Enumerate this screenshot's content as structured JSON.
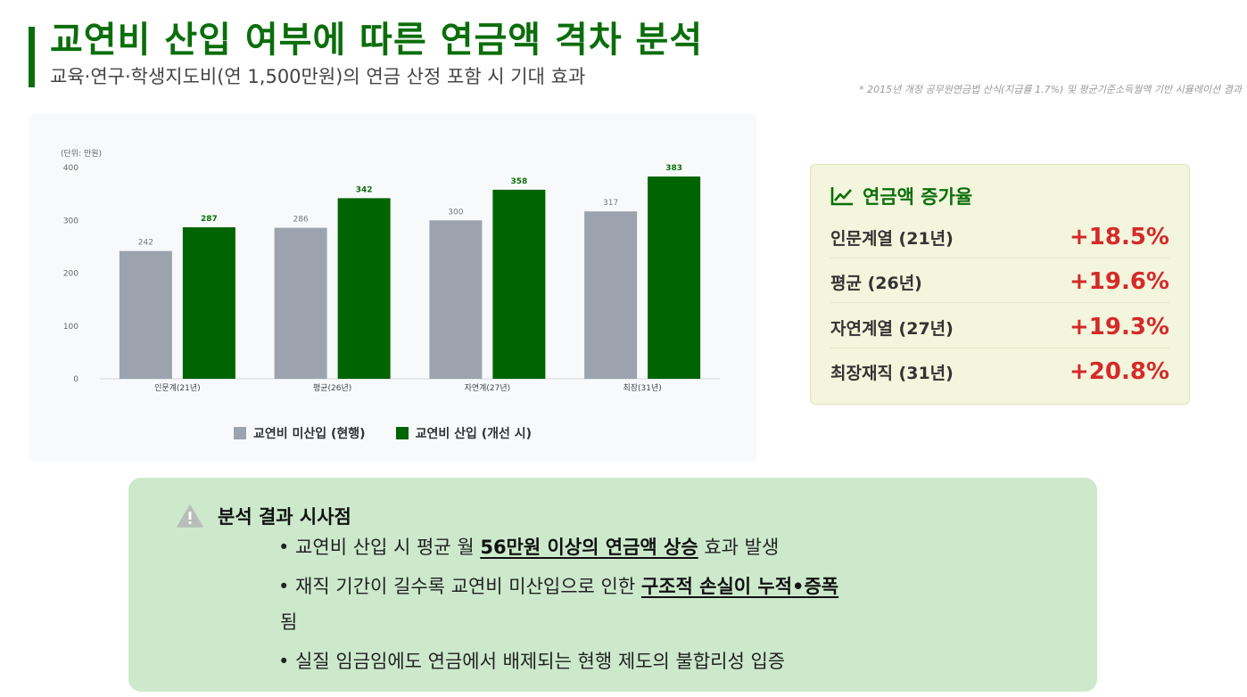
{
  "header": {
    "title": "교연비 산입 여부에 따른 연금액 격차 분석",
    "subtitle": "교육·연구·학생지도비(연 1,500만원)의 연금 산정 포함 시 기대 효과",
    "note": "* 2015년 개정 공무원연금법 산식(지급률 1.7%) 및 평균기준소득월액 기반 시뮬레이션 결과"
  },
  "chart_data": {
    "type": "bar",
    "unit_label": "(단위: 만원)",
    "categories": [
      "인문계(21년)",
      "평균(26년)",
      "자연계(27년)",
      "최장(31년)"
    ],
    "series": [
      {
        "name": "교연비 미산입 (현행)",
        "values": [
          242,
          286,
          300,
          317
        ],
        "color": "#9ca3af"
      },
      {
        "name": "교연비 산입 (개선 시)",
        "values": [
          287,
          342,
          358,
          383
        ],
        "color": "#006400"
      }
    ],
    "ylim": [
      0,
      400
    ],
    "yticks": [
      0,
      100,
      200,
      300,
      400
    ],
    "legend_position": "bottom",
    "grid": false
  },
  "growth": {
    "title": "연금액 증가율",
    "icon": "trend-line-icon",
    "rows": [
      {
        "label": "인문계열 (21년)",
        "value": "+18.5%"
      },
      {
        "label": "평균 (26년)",
        "value": "+19.6%"
      },
      {
        "label": "자연계열 (27년)",
        "value": "+19.3%"
      },
      {
        "label": "최장재직 (31년)",
        "value": "+20.8%"
      }
    ],
    "value_color": "#d42a2a"
  },
  "insight": {
    "title": "분석 결과 시사점",
    "icon": "warning-icon",
    "bullets": [
      {
        "pre": "• 교연비 산입 시 평균 월 ",
        "bold": "56만원 이상의 연금액 상승",
        "post": " 효과 발생"
      },
      {
        "pre": "• 재직 기간이 길수록 교연비 미산입으로 인한 ",
        "bold": "구조적 손실이 누적•증폭",
        "post": ""
      },
      {
        "pre": "됨",
        "bold": "",
        "post": ""
      },
      {
        "pre": "• 실질 임금임에도 연금에서 배제되는 현행 제도의 불합리성 입증",
        "bold": "",
        "post": ""
      }
    ]
  },
  "colors": {
    "accent": "#0b6e0b",
    "grey_bar": "#9ca3af",
    "green_bar": "#006400",
    "insight_bg": "#cce9cc",
    "growth_bg": "#f3f5dc"
  }
}
